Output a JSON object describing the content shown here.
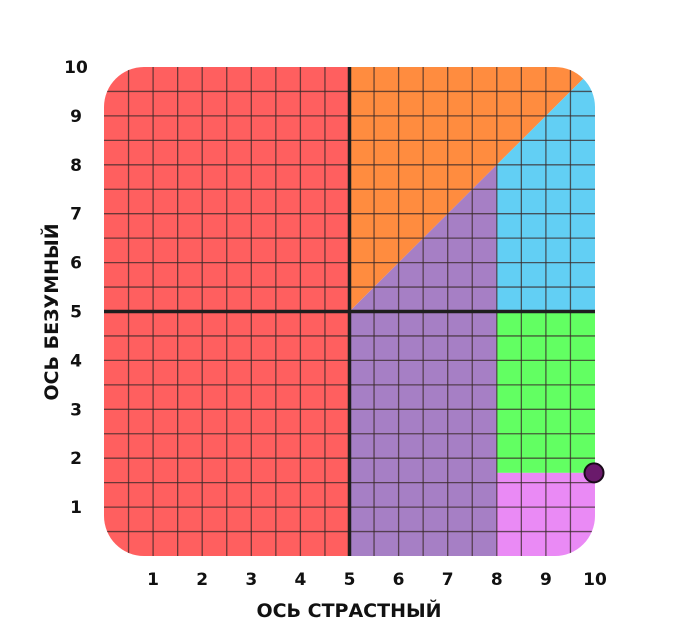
{
  "chart_data": {
    "type": "scatter",
    "title": "",
    "xlabel": "ОСЬ СТРАСТНЫЙ",
    "ylabel": "ОСЬ БЕЗУМНЫЙ",
    "xlim": [
      0,
      10
    ],
    "ylim": [
      0,
      10
    ],
    "x_ticks": [
      "1",
      "2",
      "3",
      "4",
      "5",
      "6",
      "7",
      "8",
      "9",
      "10"
    ],
    "y_ticks": [
      "1",
      "2",
      "3",
      "4",
      "5",
      "6",
      "7",
      "8",
      "9",
      "10"
    ],
    "grid": true,
    "grid_step": 0.5,
    "center_lines": {
      "x": 5,
      "y": 5
    },
    "regions": [
      {
        "name": "red",
        "color": "#ff5f5f",
        "polygon": [
          [
            0,
            0
          ],
          [
            5,
            0
          ],
          [
            5,
            10
          ],
          [
            0,
            10
          ]
        ]
      },
      {
        "name": "orange",
        "color": "#ff8c3f",
        "polygon": [
          [
            5,
            5
          ],
          [
            10,
            10
          ],
          [
            5,
            10
          ]
        ]
      },
      {
        "name": "purple",
        "color": "#a67fc5",
        "polygon": [
          [
            5,
            0
          ],
          [
            8,
            0
          ],
          [
            8,
            8
          ],
          [
            5,
            5
          ]
        ]
      },
      {
        "name": "blue",
        "color": "#62cff4",
        "polygon": [
          [
            8,
            5
          ],
          [
            10,
            5
          ],
          [
            10,
            10
          ],
          [
            8,
            8
          ]
        ]
      },
      {
        "name": "green",
        "color": "#62ff62",
        "polygon": [
          [
            8,
            1.7
          ],
          [
            10,
            1.7
          ],
          [
            10,
            5
          ],
          [
            8,
            5
          ]
        ]
      },
      {
        "name": "pink",
        "color": "#ea8af5",
        "polygon": [
          [
            8,
            0
          ],
          [
            10,
            0
          ],
          [
            10,
            1.7
          ],
          [
            8,
            1.7
          ]
        ]
      }
    ],
    "series": [
      {
        "name": "point",
        "color": "#6a1a6b",
        "x": [
          10
        ],
        "y": [
          1.7
        ]
      }
    ]
  }
}
